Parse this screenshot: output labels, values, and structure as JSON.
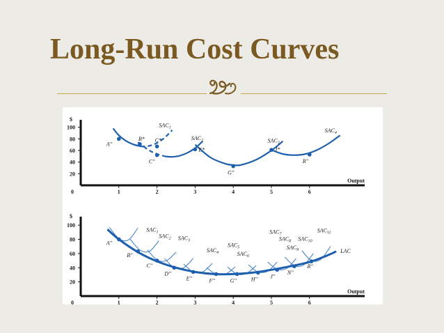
{
  "slide": {
    "title": "Long-Run Cost Curves",
    "accent_color": "#7a5a22",
    "rule_color": "#c9a64a",
    "divider_icon": "swirl-ornament-icon"
  },
  "chart_data": [
    {
      "type": "line",
      "title": "",
      "xlabel": "Output",
      "ylabel": "$",
      "x_ticks": [
        0,
        1,
        2,
        3,
        4,
        5,
        6
      ],
      "y_ticks": [
        20,
        40,
        60,
        80,
        100
      ],
      "xlim": [
        0,
        7.3
      ],
      "ylim": [
        0,
        108
      ],
      "grid": false,
      "curve_color": "#1d5fae",
      "series": [
        {
          "name": "SAC1",
          "label": "SAC",
          "sub": "1",
          "label_pos": [
            2.05,
            100
          ],
          "dash_after": 1.55,
          "x": [
            0.85,
            1.0,
            1.2,
            1.4,
            1.6,
            1.8,
            2.0,
            2.2,
            2.4
          ],
          "y": [
            98,
            86,
            76,
            70,
            67,
            68,
            73,
            82,
            95
          ]
        },
        {
          "name": "SAC2",
          "label": "SAC",
          "sub": "2",
          "label_pos": [
            2.9,
            78
          ],
          "dash_before": 2.3,
          "x": [
            1.5,
            1.8,
            2.0,
            2.2,
            2.4,
            2.6,
            2.8,
            3.0,
            3.2
          ],
          "y": [
            74,
            60,
            54,
            50,
            49,
            51,
            56,
            64,
            76
          ]
        },
        {
          "name": "SAC3",
          "label": "SAC",
          "sub": "3",
          "label_pos": [
            4.9,
            74
          ],
          "x": [
            3.0,
            3.4,
            3.8,
            4.0,
            4.2,
            4.6,
            5.0,
            5.3
          ],
          "y": [
            70,
            48,
            37,
            35,
            35,
            44,
            60,
            76
          ]
        },
        {
          "name": "SAC4",
          "label": "SAC",
          "sub": "4",
          "label_pos": [
            6.4,
            91
          ],
          "x": [
            5.0,
            5.3,
            5.6,
            5.9,
            6.2,
            6.5,
            6.8
          ],
          "y": [
            61,
            54,
            52,
            54,
            61,
            72,
            86
          ]
        }
      ],
      "points": [
        {
          "label": "A''",
          "x": 1.0,
          "y": 80,
          "label_dx": -18,
          "label_dy": 10
        },
        {
          "label": "B*",
          "x": 1.55,
          "y": 71,
          "label_dx": -2,
          "label_dy": -5
        },
        {
          "label": "C*",
          "x": 2.0,
          "y": 67,
          "label_dx": -3,
          "label_dy": -6
        },
        {
          "label": "C''",
          "x": 2.0,
          "y": 52,
          "label_dx": -12,
          "label_dy": 12
        },
        {
          "label": "E*",
          "x": 3.0,
          "y": 62,
          "label_dx": 5,
          "label_dy": 3
        },
        {
          "label": "G''",
          "x": 4.0,
          "y": 33,
          "label_dx": -8,
          "label_dy": 12
        },
        {
          "label": "J*",
          "x": 5.0,
          "y": 61,
          "label_dx": 5,
          "label_dy": 2
        },
        {
          "label": "R''",
          "x": 6.0,
          "y": 53,
          "label_dx": -10,
          "label_dy": 12
        }
      ]
    },
    {
      "type": "line",
      "title": "",
      "xlabel": "Output",
      "ylabel": "$",
      "x_ticks": [
        0,
        1,
        2,
        3,
        4,
        5,
        6
      ],
      "y_ticks": [
        20,
        40,
        60,
        80,
        100
      ],
      "xlim": [
        0,
        7.3
      ],
      "ylim": [
        0,
        108
      ],
      "grid": false,
      "curve_color": "#1d5fae",
      "lac": {
        "name": "LAC",
        "label": "LAC",
        "x": [
          0.7,
          1.0,
          1.5,
          2.0,
          2.5,
          3.0,
          3.5,
          4.0,
          4.5,
          5.0,
          5.5,
          6.0,
          6.5,
          6.7
        ],
        "y": [
          94,
          80,
          62,
          49,
          40,
          34,
          31,
          31,
          33,
          37,
          42,
          48,
          58,
          63
        ]
      },
      "sac_curves": [
        {
          "name": "SAC1",
          "label": "SAC",
          "sub": "1",
          "label_pos": [
            1.72,
            91
          ],
          "x": [
            0.75,
            1.0,
            1.25,
            1.5
          ],
          "y": [
            97,
            81,
            79,
            96
          ]
        },
        {
          "name": "SAC2",
          "label": "SAC",
          "sub": "2",
          "label_pos": [
            2.05,
            82
          ],
          "x": [
            1.3,
            1.55,
            1.8,
            2.05
          ],
          "y": [
            80,
            65,
            63,
            78
          ]
        },
        {
          "name": "SAC3",
          "label": "SAC",
          "sub": "3",
          "label_pos": [
            2.55,
            79
          ],
          "x": [
            1.75,
            2.0,
            2.25,
            2.5
          ],
          "y": [
            65,
            51,
            50,
            62
          ]
        },
        {
          "name": "SAC4",
          "label": "SAC",
          "sub": "4",
          "label_pos": [
            3.3,
            62
          ],
          "x": [
            2.2,
            2.45,
            2.7,
            2.95
          ],
          "y": [
            53,
            40,
            40,
            53
          ]
        },
        {
          "name": "SAC5",
          "label": "SAC",
          "sub": "5",
          "label_pos": [
            3.85,
            69
          ],
          "x": [
            2.7,
            2.95,
            3.2,
            3.45
          ],
          "y": [
            45,
            34,
            34,
            46
          ]
        },
        {
          "name": "SAC6",
          "label": "SAC",
          "sub": "6",
          "label_pos": [
            4.1,
            57
          ],
          "x": [
            3.3,
            3.55,
            3.8,
            4.05
          ],
          "y": [
            40,
            31,
            31,
            41
          ]
        },
        {
          "name": "SAC7",
          "label": "SAC",
          "sub": "7",
          "label_pos": [
            4.95,
            88
          ],
          "x": [
            3.85,
            4.1,
            4.35,
            4.6
          ],
          "y": [
            41,
            31,
            32,
            43
          ]
        },
        {
          "name": "SAC8",
          "label": "SAC",
          "sub": "8",
          "label_pos": [
            5.2,
            78
          ],
          "x": [
            4.4,
            4.65,
            4.9,
            5.15
          ],
          "y": [
            44,
            34,
            35,
            48
          ]
        },
        {
          "name": "SAC9",
          "label": "SAC",
          "sub": "9",
          "label_pos": [
            5.4,
            66
          ],
          "x": [
            4.9,
            5.15,
            5.4,
            5.65
          ],
          "y": [
            48,
            38,
            39,
            53
          ]
        },
        {
          "name": "SAC10",
          "label": "SAC",
          "sub": "10",
          "label_pos": [
            5.7,
            78
          ],
          "x": [
            5.35,
            5.6,
            5.85,
            6.1
          ],
          "y": [
            55,
            43,
            44,
            60
          ]
        },
        {
          "name": "SAC11",
          "label": "SAC",
          "sub": "11",
          "label_pos": [
            6.2,
            90
          ],
          "x": [
            5.8,
            6.05,
            6.3,
            6.55
          ],
          "y": [
            64,
            50,
            52,
            70
          ]
        }
      ],
      "points": [
        {
          "label": "A''",
          "x": 1.0,
          "y": 80,
          "label_dx": -18,
          "label_dy": 8
        },
        {
          "label": "B''",
          "x": 1.5,
          "y": 63,
          "label_dx": -16,
          "label_dy": 8
        },
        {
          "label": "C''",
          "x": 2.0,
          "y": 50,
          "label_dx": -15,
          "label_dy": 10
        },
        {
          "label": "D''",
          "x": 2.45,
          "y": 40,
          "label_dx": -14,
          "label_dy": 11
        },
        {
          "label": "E''",
          "x": 2.95,
          "y": 34,
          "label_dx": -10,
          "label_dy": 12
        },
        {
          "label": "F''",
          "x": 3.55,
          "y": 31,
          "label_dx": -10,
          "label_dy": 12
        },
        {
          "label": "G''",
          "x": 4.1,
          "y": 31,
          "label_dx": -10,
          "label_dy": 12
        },
        {
          "label": "H''",
          "x": 4.65,
          "y": 33,
          "label_dx": -10,
          "label_dy": 12
        },
        {
          "label": "J''",
          "x": 5.15,
          "y": 37,
          "label_dx": -10,
          "label_dy": 12
        },
        {
          "label": "N''",
          "x": 5.6,
          "y": 42,
          "label_dx": -10,
          "label_dy": 12
        },
        {
          "label": "R''",
          "x": 6.05,
          "y": 49,
          "label_dx": -6,
          "label_dy": 10
        }
      ]
    }
  ]
}
